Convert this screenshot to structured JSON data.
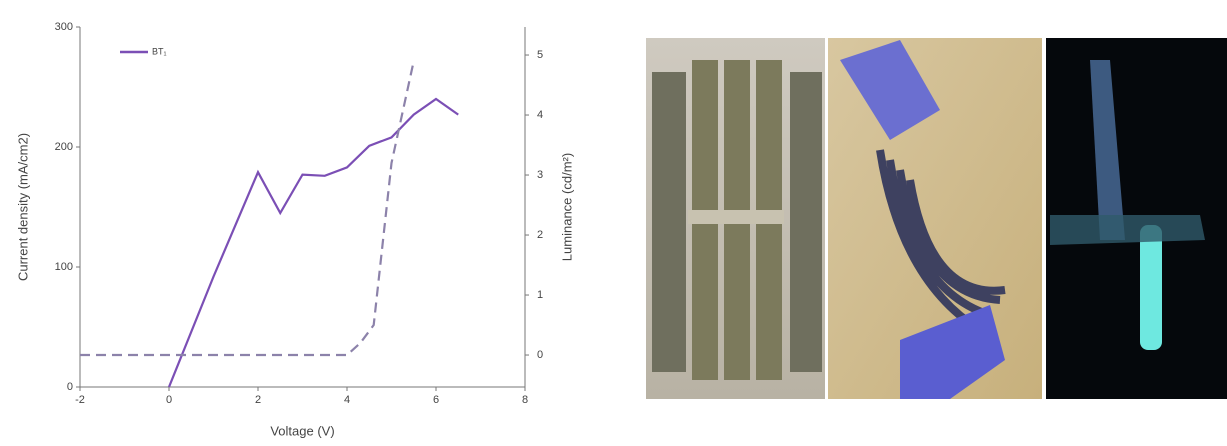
{
  "chart_data": {
    "type": "line",
    "x_label": "Voltage (V)",
    "y_label": "Current density (mA/cm2)",
    "y2_label": "Luminance (cd/m²)",
    "xlim": [
      -2,
      8
    ],
    "xticks": [
      -2,
      0,
      2,
      4,
      6,
      8
    ],
    "ylim": [
      0,
      300
    ],
    "yticks": [
      0,
      100,
      200,
      300
    ],
    "y2lim": [
      -0.533,
      5.467
    ],
    "y2ticks": [
      0,
      1,
      2,
      3,
      4,
      5
    ],
    "legend": "upper left",
    "series": [
      {
        "name": "BT₁",
        "color": "#7b4fb5",
        "x": [
          0,
          1,
          2,
          2.5,
          3,
          3.5,
          4,
          4.5,
          5,
          5.5,
          6,
          6.5
        ],
        "values": [
          0,
          92,
          179,
          145,
          177,
          176,
          183,
          201,
          208,
          227,
          240,
          227
        ]
      },
      {
        "color": "#8c82aa",
        "axis": "y2",
        "dashed": true,
        "x": [
          -2,
          -1,
          0,
          1,
          2,
          3,
          4,
          4.3,
          4.6,
          5,
          5.5
        ],
        "values": [
          0,
          0,
          0,
          0,
          0,
          0,
          0,
          0.2,
          0.5,
          3.2,
          4.9
        ]
      }
    ]
  }
}
